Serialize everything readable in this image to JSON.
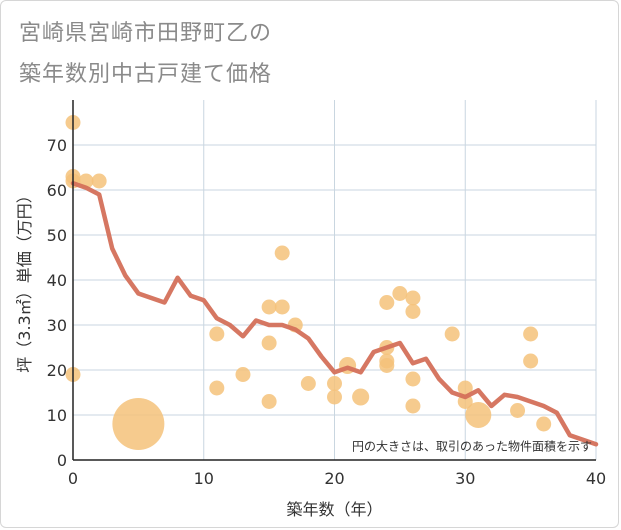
{
  "header": {
    "title_line1": "宮崎県宮崎市田野町乙の",
    "title_line2": "築年数別中古戸建て価格"
  },
  "chart_data": {
    "type": "scatter",
    "title": "宮崎県宮崎市田野町乙の築年数別中古戸建て価格",
    "xlabel": "築年数（年）",
    "ylabel": "坪（3.3㎡）単価（万円）",
    "xlim": [
      0,
      40
    ],
    "ylim": [
      0,
      80
    ],
    "xticks": [
      0,
      10,
      20,
      30,
      40
    ],
    "yticks": [
      0,
      10,
      20,
      30,
      40,
      50,
      60,
      70
    ],
    "grid": true,
    "note": "円の大きさは、取引のあった物件面積を示す",
    "colors": {
      "bubble": "#f5c27a",
      "line": "#d4705a",
      "grid": "#c9d6e0"
    },
    "scatter": [
      {
        "x": 0,
        "y": 75,
        "size": 1
      },
      {
        "x": 0,
        "y": 63,
        "size": 1
      },
      {
        "x": 0,
        "y": 62,
        "size": 1
      },
      {
        "x": 0,
        "y": 19,
        "size": 1
      },
      {
        "x": 1,
        "y": 62,
        "size": 1
      },
      {
        "x": 2,
        "y": 62,
        "size": 1
      },
      {
        "x": 5,
        "y": 8,
        "size": 12
      },
      {
        "x": 11,
        "y": 28,
        "size": 1
      },
      {
        "x": 11,
        "y": 16,
        "size": 1
      },
      {
        "x": 13,
        "y": 19,
        "size": 1
      },
      {
        "x": 15,
        "y": 34,
        "size": 1
      },
      {
        "x": 15,
        "y": 26,
        "size": 1
      },
      {
        "x": 15,
        "y": 13,
        "size": 1
      },
      {
        "x": 16,
        "y": 46,
        "size": 1
      },
      {
        "x": 16,
        "y": 34,
        "size": 1
      },
      {
        "x": 17,
        "y": 30,
        "size": 1
      },
      {
        "x": 18,
        "y": 17,
        "size": 1
      },
      {
        "x": 20,
        "y": 17,
        "size": 1
      },
      {
        "x": 20,
        "y": 14,
        "size": 1
      },
      {
        "x": 21,
        "y": 21,
        "size": 1.3
      },
      {
        "x": 22,
        "y": 14,
        "size": 1.3
      },
      {
        "x": 24,
        "y": 35,
        "size": 1
      },
      {
        "x": 24,
        "y": 25,
        "size": 1
      },
      {
        "x": 24,
        "y": 22,
        "size": 1
      },
      {
        "x": 24,
        "y": 21,
        "size": 1
      },
      {
        "x": 25,
        "y": 37,
        "size": 1
      },
      {
        "x": 26,
        "y": 36,
        "size": 1
      },
      {
        "x": 26,
        "y": 33,
        "size": 1
      },
      {
        "x": 26,
        "y": 18,
        "size": 1
      },
      {
        "x": 26,
        "y": 12,
        "size": 1
      },
      {
        "x": 29,
        "y": 28,
        "size": 1
      },
      {
        "x": 30,
        "y": 16,
        "size": 1
      },
      {
        "x": 30,
        "y": 13,
        "size": 1
      },
      {
        "x": 31,
        "y": 10,
        "size": 3
      },
      {
        "x": 34,
        "y": 11,
        "size": 1
      },
      {
        "x": 35,
        "y": 28,
        "size": 1
      },
      {
        "x": 35,
        "y": 22,
        "size": 1
      },
      {
        "x": 36,
        "y": 8,
        "size": 1
      }
    ],
    "trend": [
      {
        "x": 0,
        "y": 61.5
      },
      {
        "x": 1,
        "y": 60.5
      },
      {
        "x": 2,
        "y": 59
      },
      {
        "x": 3,
        "y": 47
      },
      {
        "x": 4,
        "y": 41
      },
      {
        "x": 5,
        "y": 37
      },
      {
        "x": 6,
        "y": 36
      },
      {
        "x": 7,
        "y": 35
      },
      {
        "x": 8,
        "y": 40.5
      },
      {
        "x": 9,
        "y": 36.5
      },
      {
        "x": 10,
        "y": 35.5
      },
      {
        "x": 11,
        "y": 31.5
      },
      {
        "x": 12,
        "y": 30
      },
      {
        "x": 13,
        "y": 27.5
      },
      {
        "x": 14,
        "y": 31
      },
      {
        "x": 15,
        "y": 30
      },
      {
        "x": 16,
        "y": 30
      },
      {
        "x": 17,
        "y": 29
      },
      {
        "x": 18,
        "y": 27
      },
      {
        "x": 19,
        "y": 23
      },
      {
        "x": 20,
        "y": 19.5
      },
      {
        "x": 21,
        "y": 20.5
      },
      {
        "x": 22,
        "y": 19.5
      },
      {
        "x": 23,
        "y": 24
      },
      {
        "x": 24,
        "y": 25
      },
      {
        "x": 25,
        "y": 26
      },
      {
        "x": 26,
        "y": 21.5
      },
      {
        "x": 27,
        "y": 22.5
      },
      {
        "x": 28,
        "y": 18
      },
      {
        "x": 29,
        "y": 15
      },
      {
        "x": 30,
        "y": 14
      },
      {
        "x": 31,
        "y": 15.5
      },
      {
        "x": 32,
        "y": 12
      },
      {
        "x": 33,
        "y": 14.5
      },
      {
        "x": 34,
        "y": 14
      },
      {
        "x": 35,
        "y": 13
      },
      {
        "x": 36,
        "y": 12
      },
      {
        "x": 37,
        "y": 10.5
      },
      {
        "x": 38,
        "y": 5.5
      },
      {
        "x": 39,
        "y": 4.5
      },
      {
        "x": 40,
        "y": 3.5
      }
    ]
  }
}
